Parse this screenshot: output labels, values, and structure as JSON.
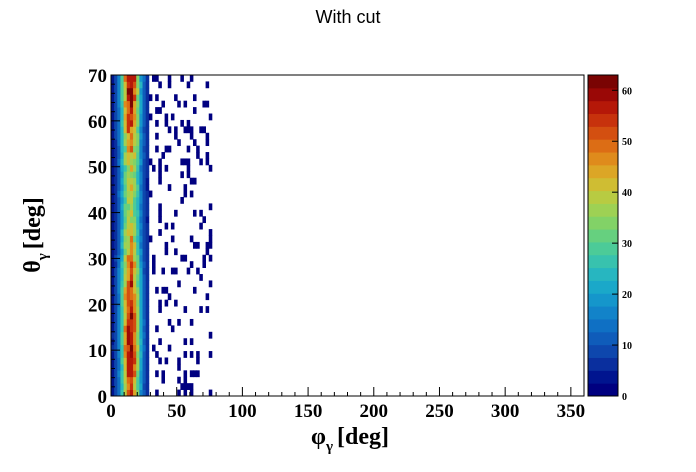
{
  "chart_data": {
    "type": "heatmap",
    "title": "With cut",
    "xlabel": {
      "symbol": "φ",
      "sub": "γ",
      "unit": "[deg]"
    },
    "ylabel": {
      "symbol": "θ",
      "sub": "γ",
      "unit": "[deg]"
    },
    "xlim": [
      0,
      360
    ],
    "ylim": [
      0,
      70
    ],
    "zlim": [
      0,
      63
    ],
    "x_ticks": [
      0,
      50,
      100,
      150,
      200,
      250,
      300,
      350
    ],
    "y_ticks": [
      0,
      10,
      20,
      30,
      40,
      50,
      60,
      70
    ],
    "z_ticks": [
      0,
      10,
      20,
      30,
      40,
      50,
      60
    ],
    "bin_size": {
      "x": 2.4,
      "y": 1.4
    },
    "bands": [
      {
        "phi_range": [
          0,
          2.4
        ],
        "approx_counts": "5-10"
      },
      {
        "phi_range": [
          2.4,
          7.2
        ],
        "approx_counts": "15-30"
      },
      {
        "phi_range": [
          7.2,
          12
        ],
        "approx_counts": "30-45"
      },
      {
        "phi_range": [
          12,
          19.2
        ],
        "approx_counts": "40-62"
      },
      {
        "phi_range": [
          19.2,
          24
        ],
        "approx_counts": "25-40"
      },
      {
        "phi_range": [
          24,
          28.8
        ],
        "approx_counts": "5-15"
      },
      {
        "phi_range": [
          28.8,
          76
        ],
        "approx_counts": "0-2 sparse"
      }
    ],
    "peak": {
      "count": 62
    },
    "palette": [
      "#000080",
      "#00148f",
      "#0a2f9e",
      "#0e47ad",
      "#0f5cba",
      "#0f70c4",
      "#1283c9",
      "#1596cb",
      "#1aa8c9",
      "#27b6c0",
      "#38c2ae",
      "#4ccb98",
      "#66d07f",
      "#82d267",
      "#9ed154",
      "#b8cb42",
      "#cfbd33",
      "#dca626",
      "#df8b1c",
      "#dc6d15",
      "#d34f10",
      "#c7320c",
      "#b51808",
      "#9a0806",
      "#7a0403"
    ]
  }
}
